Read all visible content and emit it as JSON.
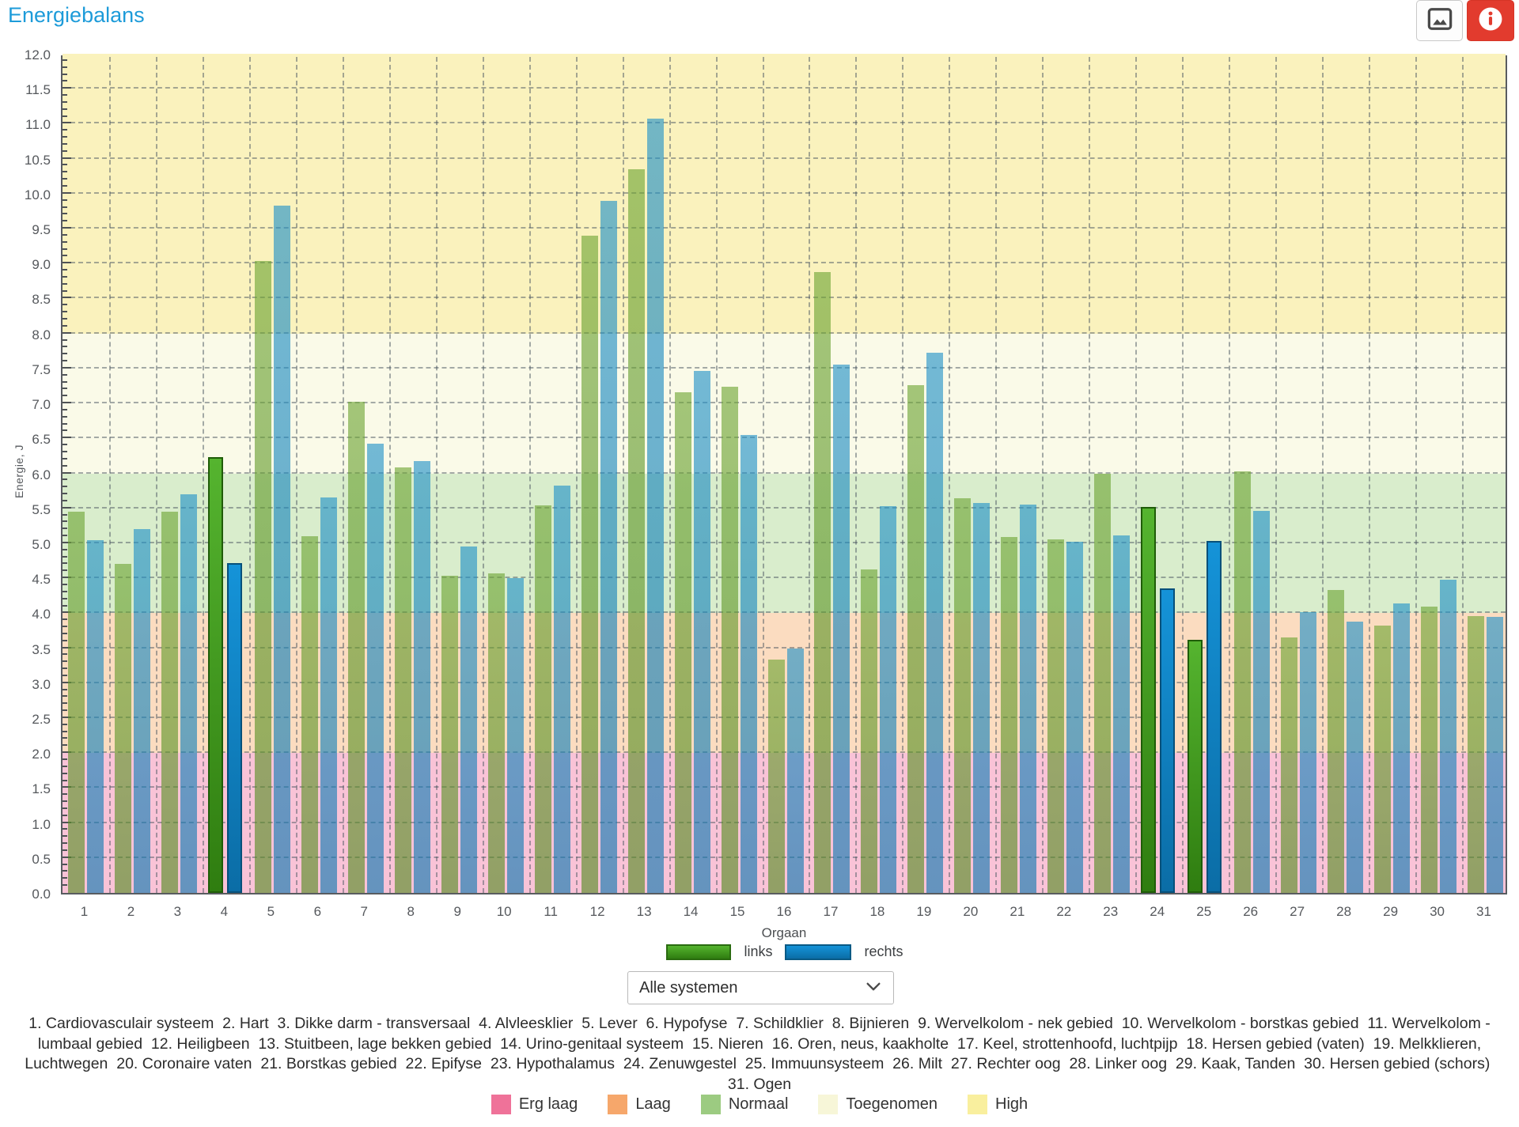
{
  "header": {
    "title": "Energiebalans"
  },
  "chart_data": {
    "type": "bar",
    "title": "Energiebalans",
    "xlabel": "Orgaan",
    "ylabel": "Energie, J",
    "ylim": [
      0,
      12
    ],
    "ytick_step": 0.5,
    "grid": true,
    "legend_position": "bottom",
    "categories": [
      "1",
      "2",
      "3",
      "4",
      "5",
      "6",
      "7",
      "8",
      "9",
      "10",
      "11",
      "12",
      "13",
      "14",
      "15",
      "16",
      "17",
      "18",
      "19",
      "20",
      "21",
      "22",
      "23",
      "24",
      "25",
      "26",
      "27",
      "28",
      "29",
      "30",
      "31"
    ],
    "series": [
      {
        "name": "links",
        "color": "#3f9e1f",
        "values": [
          5.45,
          4.7,
          5.45,
          6.23,
          9.04,
          5.1,
          7.02,
          6.08,
          4.53,
          4.57,
          5.54,
          9.4,
          10.35,
          7.16,
          7.24,
          3.34,
          8.88,
          4.63,
          7.26,
          5.64,
          5.09,
          5.06,
          6.0,
          5.52,
          3.62,
          6.03,
          3.65,
          4.33,
          3.82,
          4.1,
          3.96
        ]
      },
      {
        "name": "rechts",
        "color": "#0d87c8",
        "values": [
          5.05,
          5.2,
          5.7,
          4.72,
          9.83,
          5.65,
          6.42,
          6.17,
          4.95,
          4.5,
          5.82,
          9.9,
          11.07,
          7.46,
          6.55,
          3.5,
          7.56,
          5.53,
          7.73,
          5.58,
          5.55,
          5.02,
          5.11,
          4.36,
          5.03,
          5.46,
          4.02,
          3.88,
          4.14,
          4.48,
          3.95
        ]
      }
    ],
    "highlighted_categories": [
      "4",
      "24",
      "25"
    ],
    "bands": [
      {
        "label": "Erg laag",
        "range": [
          0,
          2
        ],
        "bg": "#f9c3d7",
        "legend_color": "#ef7299"
      },
      {
        "label": "Laag",
        "range": [
          2,
          4
        ],
        "bg": "#fbdcc0",
        "legend_color": "#f6a76b"
      },
      {
        "label": "Normaal",
        "range": [
          4,
          6
        ],
        "bg": "#d9edcc",
        "legend_color": "#9ccb81"
      },
      {
        "label": "Toegenomen",
        "range": [
          6,
          8
        ],
        "bg": "#fafae8",
        "legend_color": "#f7f6d8"
      },
      {
        "label": "High",
        "range": [
          8,
          12
        ],
        "bg": "#faf2bd",
        "legend_color": "#f9ef9e"
      }
    ]
  },
  "series_legend": {
    "links_label": "links",
    "rechts_label": "rechts"
  },
  "dropdown": {
    "value": "Alle systemen"
  },
  "footnote": {
    "organs": [
      "Cardiovasculair systeem",
      "Hart",
      "Dikke darm - transversaal",
      "Alvleesklier",
      "Lever",
      "Hypofyse",
      "Schildklier",
      "Bijnieren",
      "Wervelkolom - nek gebied",
      "Wervelkolom - borstkas gebied",
      "Wervelkolom - lumbaal gebied",
      "Heiligbeen",
      "Stuitbeen, lage bekken gebied",
      "Urino-genitaal systeem",
      "Nieren",
      "Oren, neus, kaakholte",
      "Keel, strottenhoofd, luchtpijp",
      "Hersen gebied (vaten)",
      "Melkklieren, Luchtwegen",
      "Coronaire vaten",
      "Borstkas gebied",
      "Epifyse",
      "Hypothalamus",
      "Zenuwgestel",
      "Immuunsysteem",
      "Milt",
      "Rechter oog",
      "Linker oog",
      "Kaak, Tanden",
      "Hersen gebied (schors)",
      "Ogen"
    ]
  }
}
